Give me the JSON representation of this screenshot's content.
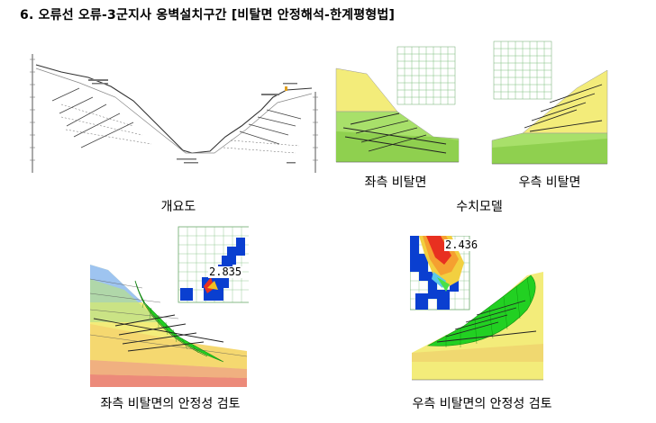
{
  "heading": "6. 오류선 오류-3군지사 옹벽설치구간 [비탈면 안정해석-한계평형법]",
  "captions": {
    "overview": "개요도",
    "numerical_model": "수치모델",
    "left_slope": "좌측 비탈면",
    "right_slope": "우측 비탈면",
    "left_stability": "좌측 비탈면의 안정성 검토",
    "right_stability": "우측 비탈면의 안정성 검토"
  },
  "safety_factors": {
    "left": "2.835",
    "right": "2.436"
  },
  "colors": {
    "yellow_soil": "#f3ec7a",
    "green_soil": "#a8e06a",
    "dark_green_soil": "#8fd04f",
    "grid": "#7fbf7f",
    "slip_green": "#22d022",
    "blue_block": "#0a3fd0",
    "red_zone": "#e83020"
  }
}
